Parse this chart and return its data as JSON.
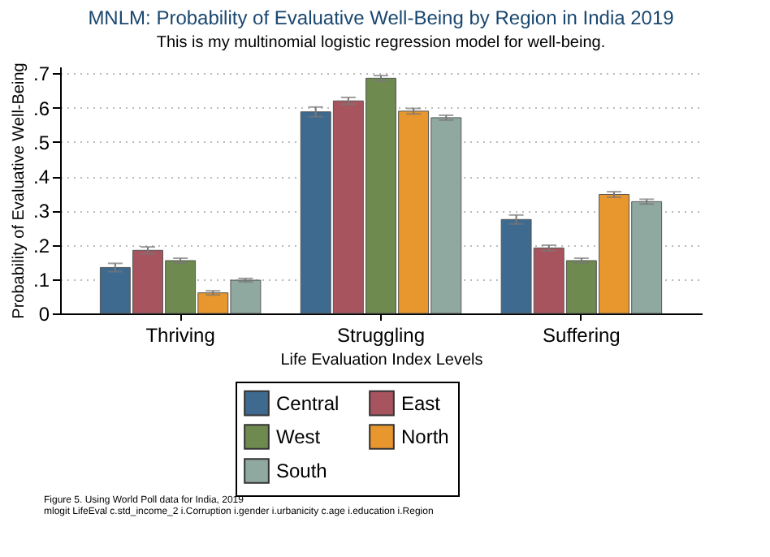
{
  "chart_data": {
    "type": "bar",
    "title": "MNLM: Probability of Evaluative Well-Being by Region in India 2019",
    "subtitle": "This is my multinomial logistic regression model for well-being.",
    "xlabel": "Life Evaluation Index Levels",
    "ylabel": "Probability of Evaluative Well-Being",
    "categories": [
      "Thriving",
      "Struggling",
      "Suffering"
    ],
    "series": [
      {
        "name": "Central",
        "color": "#3e6a8f",
        "values": [
          0.134,
          0.588,
          0.274
        ],
        "errors": [
          0.012,
          0.014,
          0.013
        ]
      },
      {
        "name": "East",
        "color": "#a8545e",
        "values": [
          0.184,
          0.62,
          0.191
        ],
        "errors": [
          0.01,
          0.01,
          0.008
        ]
      },
      {
        "name": "West",
        "color": "#6e8a4f",
        "values": [
          0.154,
          0.686,
          0.154
        ],
        "errors": [
          0.007,
          0.008,
          0.007
        ]
      },
      {
        "name": "North",
        "color": "#e8962e",
        "values": [
          0.06,
          0.59,
          0.347
        ],
        "errors": [
          0.006,
          0.008,
          0.008
        ]
      },
      {
        "name": "South",
        "color": "#8fa8a0",
        "values": [
          0.097,
          0.571,
          0.326
        ],
        "errors": [
          0.005,
          0.007,
          0.007
        ]
      }
    ],
    "ylim": [
      0,
      0.72
    ],
    "yticks": [
      0,
      {
        "value": 0.1,
        "label": ".1"
      },
      {
        "value": 0.2,
        "label": ".2"
      },
      {
        "value": 0.3,
        "label": ".3"
      },
      {
        "value": 0.4,
        "label": ".4"
      },
      {
        "value": 0.5,
        "label": ".5"
      },
      {
        "value": 0.6,
        "label": ".6"
      },
      {
        "value": 0.7,
        "label": ".7"
      }
    ],
    "grid": "y",
    "legend": "bottom",
    "annotations": [
      "Figure 5. Using World Poll data for India, 2019",
      "mlogit LifeEval c.std_income_2 i.Corruption i.gender i.urbanicity c.age i.education i.Region"
    ]
  }
}
